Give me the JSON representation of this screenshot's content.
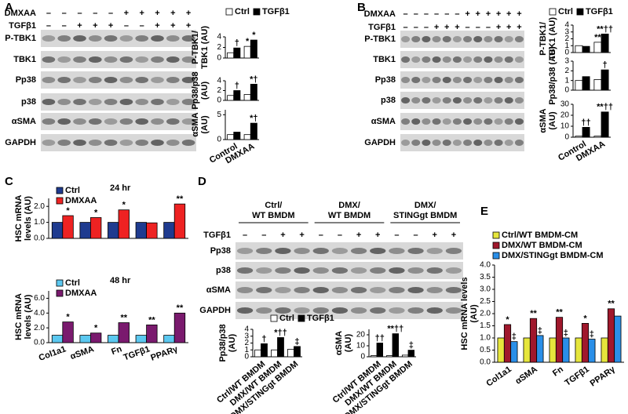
{
  "panels": [
    "A",
    "B",
    "C",
    "D",
    "E"
  ],
  "blots": [
    {
      "treatments": [
        {
          "name": "DMXAA",
          "signs": [
            "–",
            "–",
            "–",
            "–",
            "–",
            "+",
            "+",
            "+",
            "+",
            "+"
          ]
        },
        {
          "name": "TGFβ1",
          "signs": [
            "–",
            "–",
            "+",
            "+",
            "+",
            "–",
            "–",
            "+",
            "+",
            "+"
          ]
        }
      ],
      "rows": [
        "P-TBK1",
        "TBK1",
        "Pp38",
        "p38",
        "αSMA",
        "GAPDH"
      ]
    },
    {
      "treatments": [
        {
          "name": "DMXAA",
          "signs": [
            "–",
            "–",
            "–",
            "–",
            "–",
            "–",
            "+",
            "+",
            "+",
            "+",
            "+",
            "+"
          ]
        },
        {
          "name": "TGFβ1",
          "signs": [
            "–",
            "–",
            "–",
            "+",
            "+",
            "+",
            "–",
            "–",
            "–",
            "+",
            "+",
            "+"
          ]
        }
      ],
      "rows": [
        "P-TBK1",
        "TBK1",
        "Pp38",
        "p38",
        "αSMA",
        "GAPDH"
      ]
    },
    {
      "headers": [
        [
          "Ctrl/",
          "WT BMDM"
        ],
        [
          "DMX/",
          "WT BMDM"
        ],
        [
          "DMX/",
          "STINGgt BMDM"
        ]
      ],
      "treatments": [
        {
          "name": "TGFβ1",
          "signs": [
            "–",
            "–",
            "+",
            "+",
            "–",
            "–",
            "+",
            "+",
            "–",
            "–",
            "+",
            "+"
          ]
        }
      ],
      "rows": [
        "Pp38",
        "p38",
        "αSMA",
        "GAPDH"
      ]
    }
  ],
  "chart_data": [
    {
      "type": "bar",
      "y_label": [
        "P-TBK1/",
        "TBK1 (AU)"
      ],
      "ylim": [
        0,
        4
      ],
      "yticks": [
        0,
        2,
        4
      ],
      "legend": true,
      "series": [
        {
          "name": "Ctrl",
          "color": "#ffffff",
          "values": [
            1.0,
            2.2
          ],
          "sig": [
            null,
            "*"
          ]
        },
        {
          "name": "TGFβ1",
          "color": "#000000",
          "values": [
            1.9,
            3.4
          ],
          "sig": [
            "†",
            "*"
          ]
        }
      ]
    },
    {
      "type": "bar",
      "y_label": [
        "Pp38/p38",
        "(AU)"
      ],
      "ylim": [
        0,
        4
      ],
      "yticks": [
        0,
        2,
        4
      ],
      "series": [
        {
          "color": "#ffffff",
          "values": [
            1.0,
            1.2
          ]
        },
        {
          "color": "#000000",
          "values": [
            2.0,
            3.3
          ],
          "sig": [
            "†",
            "*†"
          ]
        }
      ]
    },
    {
      "type": "bar",
      "y_label": [
        "αSMA",
        "(AU)"
      ],
      "ylim": [
        0,
        6
      ],
      "yticks": [
        0,
        5
      ],
      "categories": [
        "Control",
        "DMXAA"
      ],
      "series": [
        {
          "color": "#ffffff",
          "values": [
            1.0,
            1.0
          ]
        },
        {
          "color": "#000000",
          "values": [
            1.5,
            3.3
          ],
          "sig": [
            null,
            "*†"
          ]
        }
      ]
    },
    {
      "type": "bar",
      "y_label": [
        "P-TBK1/",
        "TBK1 (AU)"
      ],
      "ylim": [
        0,
        4
      ],
      "yticks": [
        0,
        1,
        2,
        3,
        4
      ],
      "legend": true,
      "series": [
        {
          "name": "Ctrl",
          "color": "#ffffff",
          "values": [
            1.0,
            1.5
          ],
          "sig": [
            null,
            "**"
          ]
        },
        {
          "name": "TGFβ1",
          "color": "#000000",
          "values": [
            0.9,
            2.7
          ],
          "sig": [
            null,
            "**††"
          ]
        }
      ]
    },
    {
      "type": "bar",
      "y_label": [
        "Pp38/p38 (AU)"
      ],
      "ylim": [
        0,
        3
      ],
      "yticks": [
        0,
        1,
        2,
        3
      ],
      "series": [
        {
          "color": "#ffffff",
          "values": [
            1.0,
            1.1
          ]
        },
        {
          "color": "#000000",
          "values": [
            1.4,
            2.1
          ],
          "sig": [
            null,
            "†"
          ]
        }
      ]
    },
    {
      "type": "bar",
      "y_label": [
        "αSMA",
        "(AU)"
      ],
      "ylim": [
        0,
        30
      ],
      "yticks": [
        0,
        10,
        20,
        30
      ],
      "categories": [
        "Control",
        "DMXAA"
      ],
      "series": [
        {
          "color": "#ffffff",
          "values": [
            1,
            1
          ]
        },
        {
          "color": "#000000",
          "values": [
            9,
            23
          ],
          "sig": [
            "††",
            "**††"
          ]
        }
      ]
    },
    {
      "type": "bar",
      "title": "24 hr",
      "y_label": [
        "HSC mRNA",
        "levels (AU)"
      ],
      "legend": true,
      "ylim": [
        0,
        2.5
      ],
      "yticks": [
        {
          "value": 0,
          "label": "0.0"
        },
        {
          "value": 1,
          "label": "1.0"
        },
        {
          "value": 2,
          "label": "2.0"
        }
      ],
      "series": [
        {
          "name": "Ctrl",
          "color": "#1f3b8f",
          "values": [
            1,
            1,
            1,
            1,
            1
          ]
        },
        {
          "name": "DMXAA",
          "color": "#ee2222",
          "values": [
            1.42,
            1.3,
            1.78,
            0.97,
            2.15
          ],
          "sig": [
            "*",
            "*",
            "*",
            null,
            "**"
          ]
        }
      ]
    },
    {
      "type": "bar",
      "title": "48 hr",
      "y_label": [
        "HSC mRNA",
        "levels (AU)"
      ],
      "legend": true,
      "ylim": [
        0,
        7
      ],
      "yticks": [
        {
          "value": 0,
          "label": "0.0"
        },
        {
          "value": 2,
          "label": "2.0"
        },
        {
          "value": 4,
          "label": "4.0"
        },
        {
          "value": 6,
          "label": "6.0"
        }
      ],
      "categories": [
        "Col1a1",
        "αSMA",
        "Fn",
        "TGFβ1",
        "PPARγ"
      ],
      "series": [
        {
          "name": "Ctrl",
          "color": "#5bc8f0",
          "values": [
            1,
            1,
            1,
            1,
            1
          ]
        },
        {
          "name": "DMXAA",
          "color": "#7a1a6e",
          "values": [
            2.8,
            1.3,
            2.7,
            2.4,
            4.0
          ],
          "sig": [
            "*",
            "*",
            "**",
            "**",
            "**"
          ]
        }
      ]
    },
    {
      "type": "bar",
      "y_label": [
        "Pp38/p38",
        "(AU)"
      ],
      "ylim": [
        0,
        4
      ],
      "yticks": [
        0,
        1,
        2,
        3,
        4
      ],
      "legend": true,
      "categories": [
        "Ctrl/WT BMDM",
        "DMX/WT BMDM",
        "DMX/STINGgt BMDM"
      ],
      "series": [
        {
          "name": "Ctrl",
          "color": "#ffffff",
          "values": [
            1.0,
            1.0,
            1.1
          ]
        },
        {
          "name": "TGFβ1",
          "color": "#000000",
          "values": [
            1.9,
            2.8,
            1.5
          ],
          "sig": [
            "†",
            "*††",
            "‡"
          ]
        }
      ]
    },
    {
      "type": "bar",
      "y_label": [
        "αSMA",
        "(AU)"
      ],
      "ylim": [
        0,
        25
      ],
      "yticks": [
        0,
        10,
        20
      ],
      "categories": [
        "Ctrl/WT BMDM",
        "DMX/WT BMDM",
        "DMX/STINGgt BMDM"
      ],
      "series": [
        {
          "color": "#ffffff",
          "values": [
            1,
            1,
            1.5
          ]
        },
        {
          "color": "#000000",
          "values": [
            12.5,
            21,
            6
          ],
          "sig": [
            "††",
            "**††",
            "‡"
          ]
        }
      ]
    },
    {
      "type": "bar",
      "y_label": [
        "HSC mRNA levels",
        "(AU)"
      ],
      "legend": true,
      "ylim": [
        0,
        4
      ],
      "yticks": [
        {
          "value": 0,
          "label": "0.0"
        },
        0.5,
        {
          "value": 1,
          "label": "1.0"
        },
        1.5,
        {
          "value": 2,
          "label": "2.0"
        },
        2.5,
        {
          "value": 3,
          "label": "3.0"
        },
        3.5,
        {
          "value": 4,
          "label": "4.0"
        }
      ],
      "categories": [
        "Col1a1",
        "αSMA",
        "Fn",
        "TGFβ1",
        "PPARγ"
      ],
      "series": [
        {
          "name": "Ctrl/WT BMDM-CM",
          "color": "#e6e63c",
          "values": [
            1,
            1,
            1,
            1,
            1
          ]
        },
        {
          "name": "DMX/WT BMDM-CM",
          "color": "#a0182c",
          "values": [
            1.55,
            1.8,
            1.85,
            1.6,
            2.2
          ],
          "sig": [
            "*",
            "**",
            "**",
            "*",
            "**"
          ]
        },
        {
          "name": "DMX/STINGgt BMDM-CM",
          "color": "#2a8fe8",
          "values": [
            0.85,
            1.1,
            1.0,
            0.95,
            1.9
          ],
          "sig": [
            "‡",
            "‡",
            "‡",
            "‡",
            null
          ]
        }
      ]
    }
  ]
}
